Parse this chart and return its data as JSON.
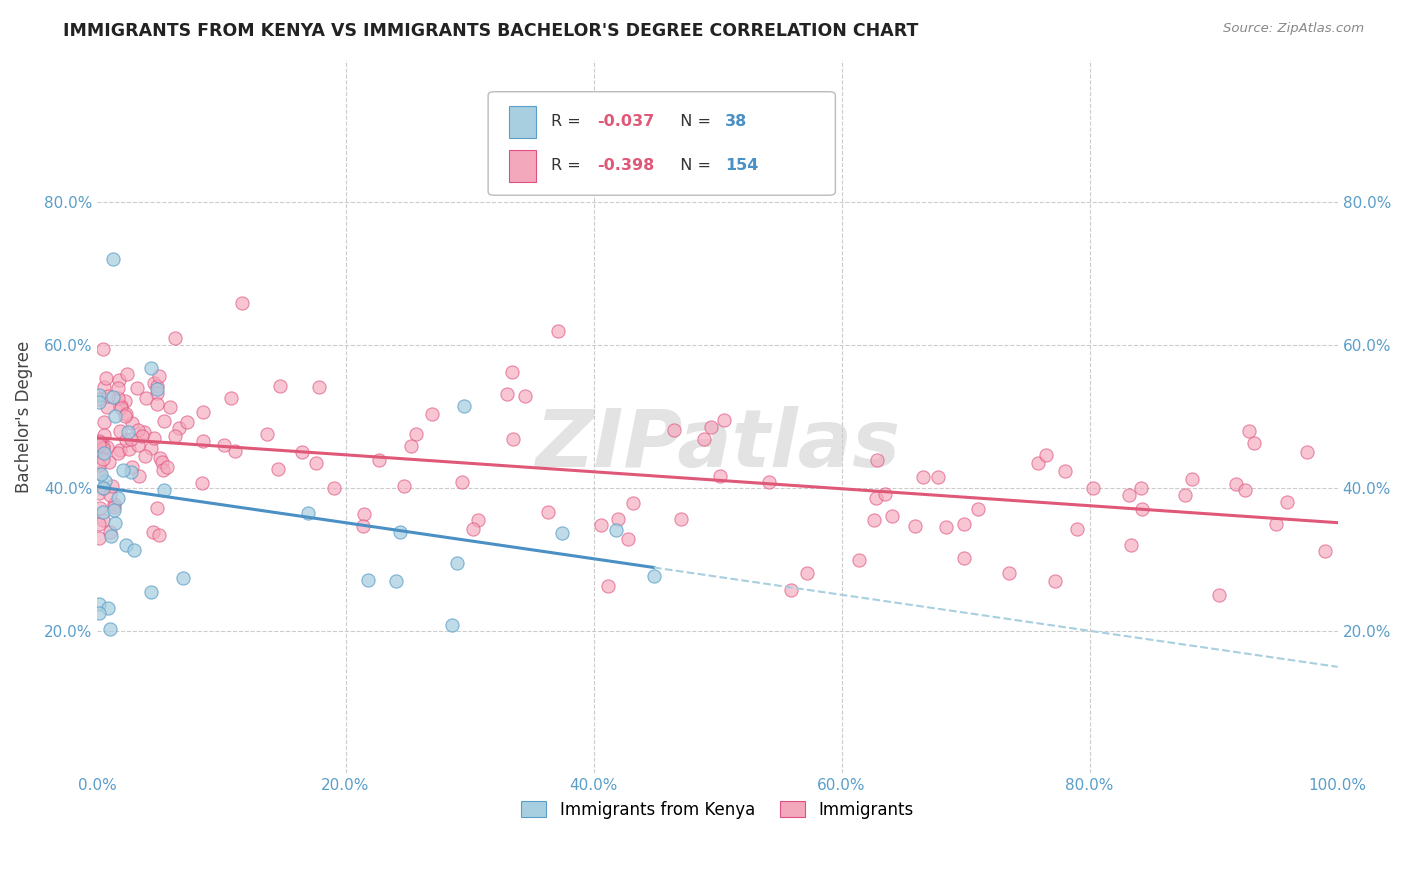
{
  "title": "IMMIGRANTS FROM KENYA VS IMMIGRANTS BACHELOR'S DEGREE CORRELATION CHART",
  "source": "Source: ZipAtlas.com",
  "ylabel": "Bachelor's Degree",
  "xlim": [
    0,
    1.0
  ],
  "ylim": [
    0,
    1.0
  ],
  "background_color": "#ffffff",
  "grid_color": "#cccccc",
  "color_blue": "#a8cfe0",
  "color_pink": "#f4a8bb",
  "color_edge_blue": "#5b9ec9",
  "color_edge_pink": "#e05080",
  "color_line_blue": "#4a90c4",
  "color_line_pink": "#e05878",
  "color_dashed_blue": "#a8cfe0",
  "watermark": "ZIPatlas",
  "legend_text_color": "#333333",
  "legend_r_color": "#e05878",
  "legend_n_color": "#4a90c4",
  "tick_color": "#5b9ec9"
}
